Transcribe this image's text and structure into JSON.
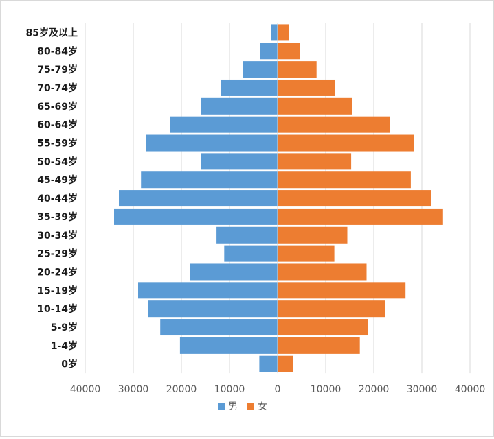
{
  "chart_data": {
    "type": "bar",
    "orientation": "horizontal-diverging",
    "categories": [
      "85岁及以上",
      "80-84岁",
      "75-79岁",
      "70-74岁",
      "65-69岁",
      "60-64岁",
      "55-59岁",
      "50-54岁",
      "45-49岁",
      "40-44岁",
      "35-39岁",
      "30-34岁",
      "25-29岁",
      "20-24岁",
      "15-19岁",
      "10-14岁",
      "5-9岁",
      "1-4岁",
      "0岁"
    ],
    "series": [
      {
        "name": "男",
        "color": "#5b9bd5",
        "values": [
          1300,
          3600,
          7200,
          11800,
          16000,
          22300,
          27400,
          16000,
          28400,
          33000,
          34000,
          12700,
          11100,
          18200,
          29000,
          26900,
          24400,
          20300,
          3800
        ]
      },
      {
        "name": "女",
        "color": "#ed7d31",
        "values": [
          2400,
          4600,
          8100,
          11900,
          15500,
          23400,
          28300,
          15300,
          27700,
          31900,
          34400,
          14500,
          11800,
          18500,
          26600,
          22300,
          18800,
          17100,
          3200
        ]
      }
    ],
    "xticks": [
      "40000",
      "30000",
      "20000",
      "10000",
      "0",
      "10000",
      "20000",
      "30000",
      "40000"
    ],
    "xlim": [
      -40000,
      40000
    ],
    "grid": true,
    "legend": "bottom"
  }
}
